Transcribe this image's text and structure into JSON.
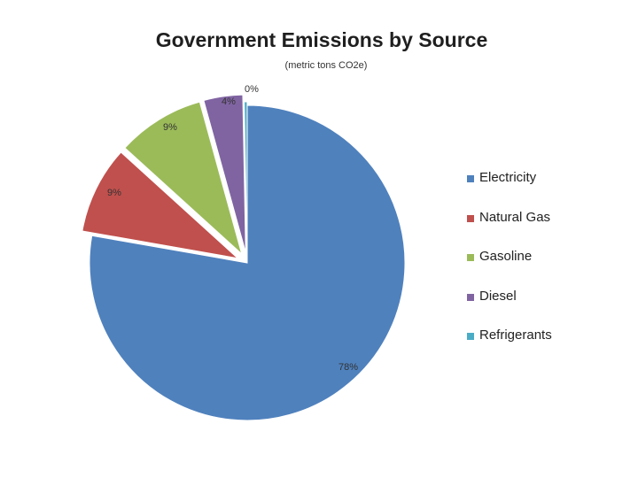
{
  "chart_data": {
    "type": "pie",
    "title": "Government Emissions by Source",
    "subtitle": "(metric tons CO2e)",
    "legend_position": "right",
    "slices": [
      {
        "name": "Electricity",
        "value": 78,
        "label": "78%",
        "color": "#4f81bd"
      },
      {
        "name": "Natural Gas",
        "value": 9,
        "label": "9%",
        "color": "#c0504d"
      },
      {
        "name": "Gasoline",
        "value": 9,
        "label": "9%",
        "color": "#9bbb59"
      },
      {
        "name": "Diesel",
        "value": 4,
        "label": "4%",
        "color": "#8064a2"
      },
      {
        "name": "Refrigerants",
        "value": 0.3,
        "label": "0%",
        "color": "#4bacc6"
      }
    ]
  }
}
